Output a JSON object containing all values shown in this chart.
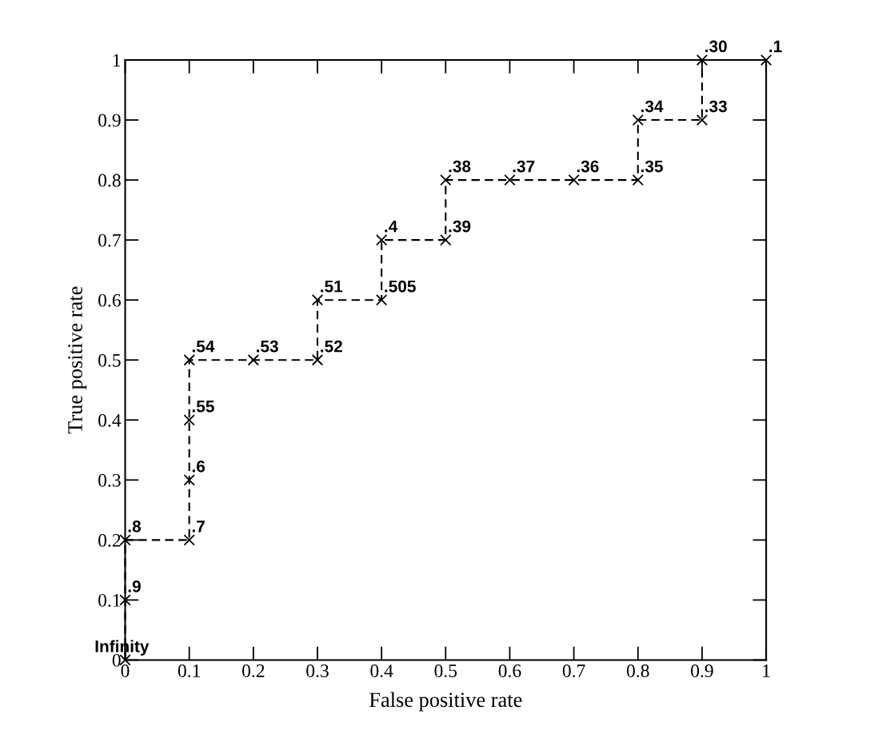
{
  "chart_data": {
    "type": "line",
    "xlabel": "False positive rate",
    "ylabel": "True positive rate",
    "x": [
      0,
      0,
      0,
      0.1,
      0.1,
      0.1,
      0.1,
      0.2,
      0.3,
      0.3,
      0.4,
      0.4,
      0.5,
      0.5,
      0.6,
      0.7,
      0.8,
      0.8,
      0.9,
      0.9,
      1.0
    ],
    "series": [
      {
        "color": "#000000",
        "values": [
          0,
          0.1,
          0.2,
          0.2,
          0.3,
          0.4,
          0.5,
          0.5,
          0.5,
          0.6,
          0.6,
          0.7,
          0.7,
          0.8,
          0.8,
          0.8,
          0.8,
          0.9,
          0.9,
          1.0,
          1.0
        ]
      }
    ],
    "value_labels": [
      "Infinity",
      ".9",
      ".8",
      ".7",
      ".6",
      ".55",
      ".54",
      ".53",
      ".52",
      ".51",
      ".505",
      ".4",
      ".39",
      ".38",
      ".37",
      ".36",
      ".35",
      ".34",
      ".33",
      ".30",
      ".1"
    ],
    "xlim": [
      0,
      1
    ],
    "ylim": [
      0,
      1
    ],
    "xticks": [
      0,
      0.1,
      0.2,
      0.3,
      0.4,
      0.5,
      0.6,
      0.7,
      0.8,
      0.9,
      1
    ],
    "yticks": [
      0,
      0.1,
      0.2,
      0.3,
      0.4,
      0.5,
      0.6,
      0.7,
      0.8,
      0.9,
      1
    ],
    "marker": "cross",
    "line_style": "dashed",
    "grid": false,
    "legend": false
  }
}
